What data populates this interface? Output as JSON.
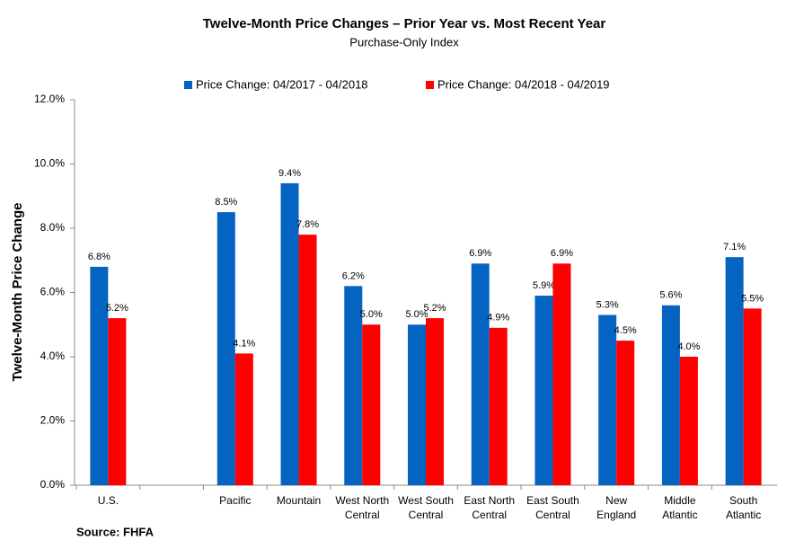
{
  "chart_data": {
    "type": "bar",
    "title": "Twelve-Month Price Changes – Prior Year vs. Most Recent Year",
    "subtitle": "Purchase-Only Index",
    "y_axis_label": "Twelve-Month Price Change",
    "source": "Source: FHFA",
    "categories": [
      [
        "U.S."
      ],
      null,
      [
        "Pacific"
      ],
      [
        "Mountain"
      ],
      [
        "West North",
        "Central"
      ],
      [
        "West South",
        "Central"
      ],
      [
        "East North",
        "Central"
      ],
      [
        "East South",
        "Central"
      ],
      [
        "New",
        "England"
      ],
      [
        "Middle",
        "Atlantic"
      ],
      [
        "South",
        "Atlantic"
      ]
    ],
    "series": [
      {
        "name": "Price Change:  04/2017 - 04/2018",
        "color": "#0563c1",
        "values": [
          6.8,
          null,
          8.5,
          9.4,
          6.2,
          5.0,
          6.9,
          5.9,
          5.3,
          5.6,
          7.1
        ],
        "value_labels": [
          "6.8%",
          null,
          "8.5%",
          "9.4%",
          "6.2%",
          "5.0%",
          "6.9%",
          "5.9%",
          "5.3%",
          "5.6%",
          "7.1%"
        ]
      },
      {
        "name": "Price Change:  04/2018 - 04/2019",
        "color": "#ff0000",
        "values": [
          5.2,
          null,
          4.1,
          7.8,
          5.0,
          5.2,
          4.9,
          6.9,
          4.5,
          4.0,
          5.5
        ],
        "value_labels": [
          "5.2%",
          null,
          "4.1%",
          "7.8%",
          "5.0%",
          "5.2%",
          "4.9%",
          "6.9%",
          "4.5%",
          "4.0%",
          "5.5%"
        ]
      }
    ],
    "ylim": [
      0,
      12
    ],
    "yticks": [
      {
        "value": 0,
        "label": "0.0%"
      },
      {
        "value": 2,
        "label": "2.0%"
      },
      {
        "value": 4,
        "label": "4.0%"
      },
      {
        "value": 6,
        "label": "6.0%"
      },
      {
        "value": 8,
        "label": "8.0%"
      },
      {
        "value": 10,
        "label": "10.0%"
      },
      {
        "value": 12,
        "label": "12.0%"
      }
    ],
    "legend": "top"
  }
}
